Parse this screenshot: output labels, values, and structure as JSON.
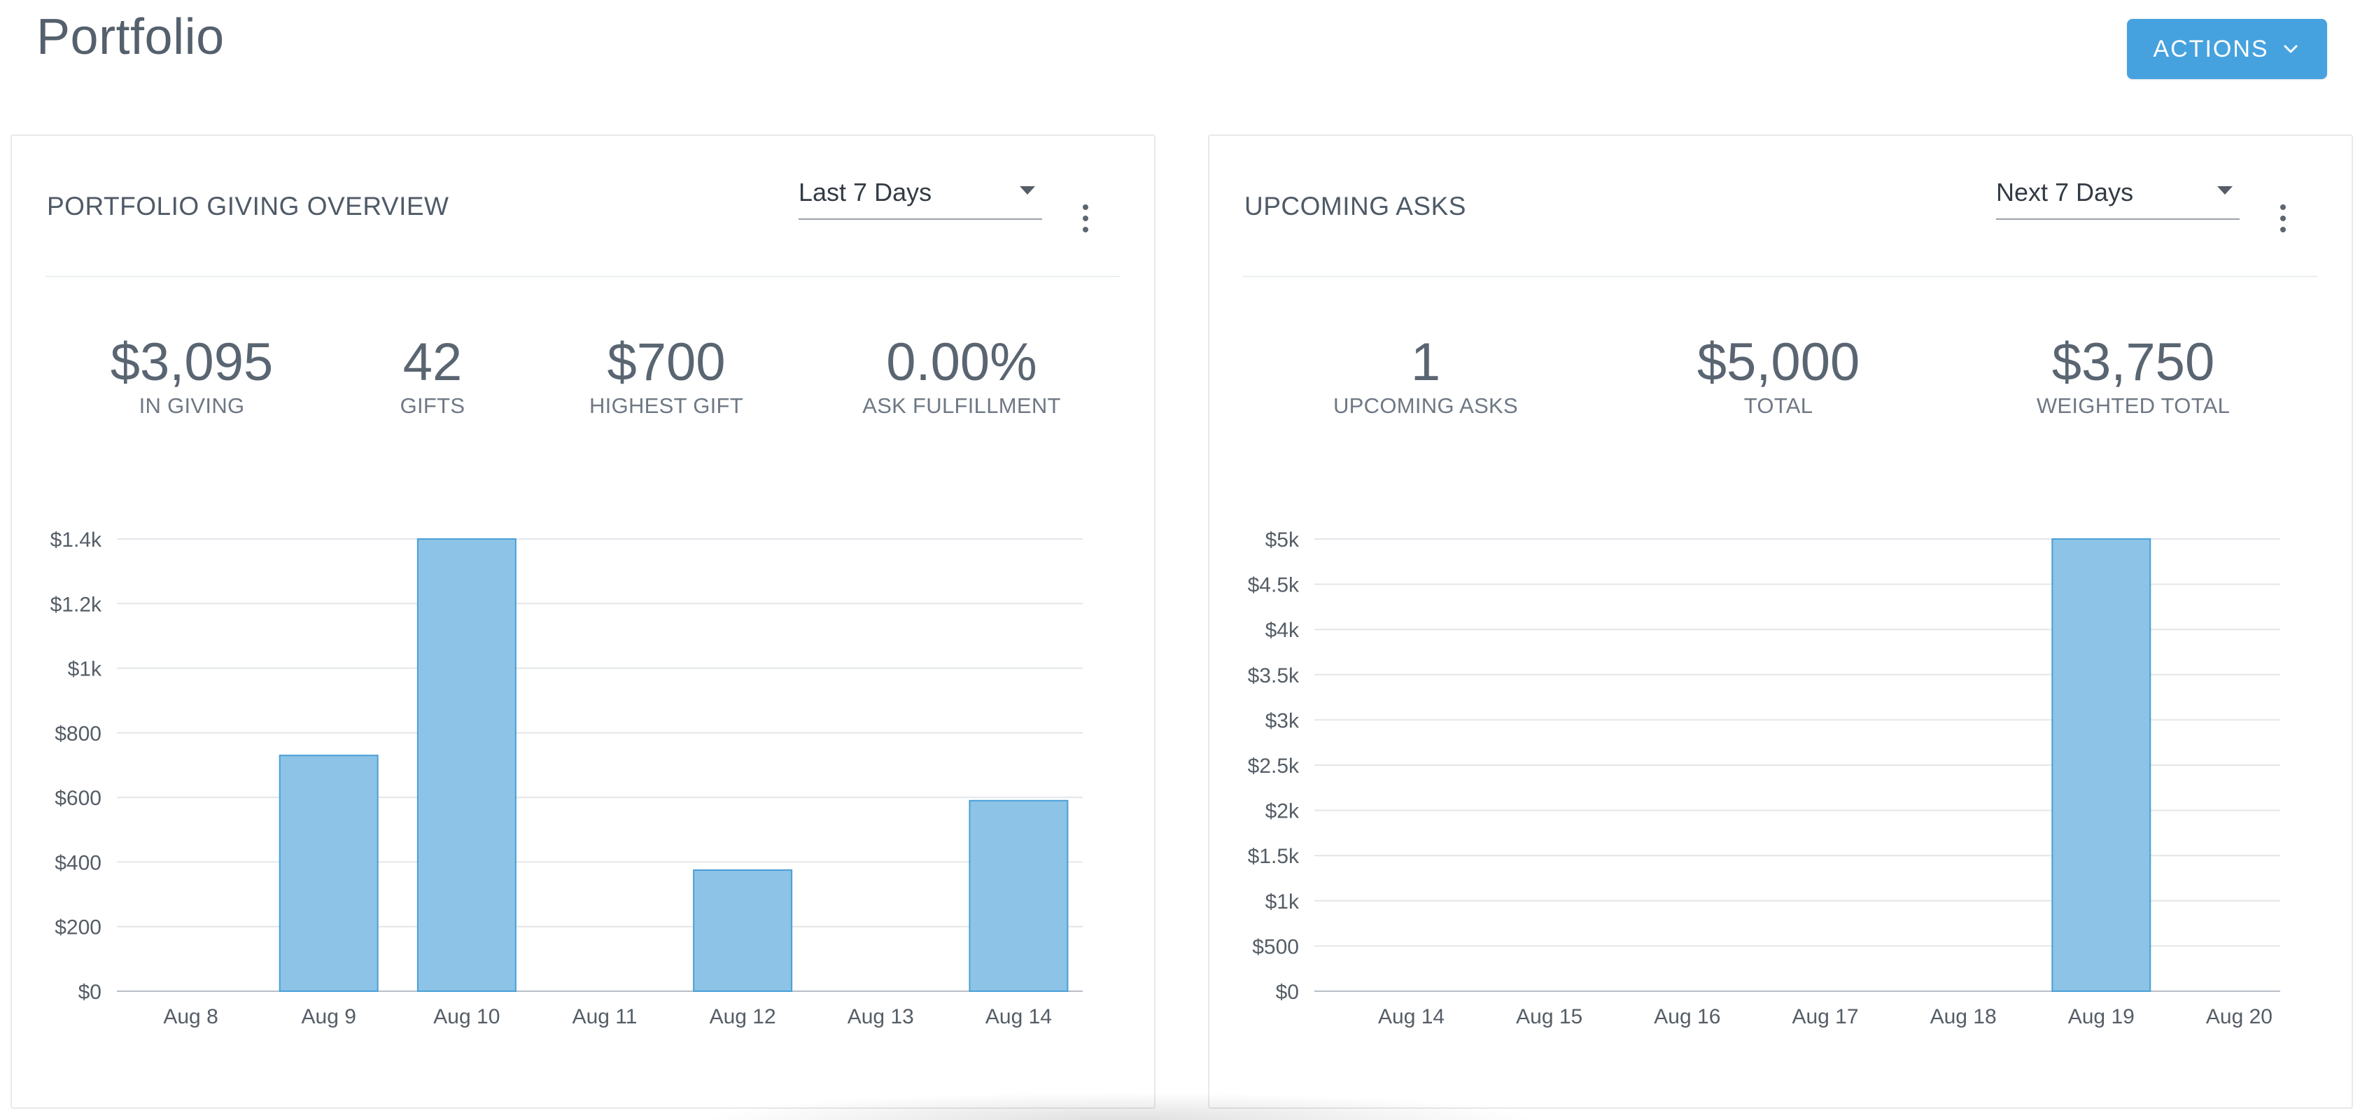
{
  "page": {
    "title": "Portfolio",
    "actions_label": "ACTIONS",
    "actions_icon": "chevron-down-icon"
  },
  "giving_panel": {
    "title": "PORTFOLIO GIVING OVERVIEW",
    "range_value": "Last 7 Days",
    "stats": [
      {
        "value": "$3,095",
        "label": "IN GIVING"
      },
      {
        "value": "42",
        "label": "GIFTS"
      },
      {
        "value": "$700",
        "label": "HIGHEST GIFT"
      },
      {
        "value": "0.00%",
        "label": "ASK FULFILLMENT"
      }
    ]
  },
  "asks_panel": {
    "title": "UPCOMING ASKS",
    "range_value": "Next 7 Days",
    "stats": [
      {
        "value": "1",
        "label": "UPCOMING ASKS"
      },
      {
        "value": "$5,000",
        "label": "TOTAL"
      },
      {
        "value": "$3,750",
        "label": "WEIGHTED TOTAL"
      }
    ]
  },
  "colors": {
    "accent": "#46a2df",
    "bar_fill": "#8cc3e6",
    "bar_stroke": "#4a9fd6",
    "grid": "#e3e6e9",
    "axis_text": "#555d66"
  },
  "chart_data": [
    {
      "type": "bar",
      "title": "",
      "xlabel": "",
      "ylabel": "",
      "categories": [
        "Aug 8",
        "Aug 9",
        "Aug 10",
        "Aug 11",
        "Aug 12",
        "Aug 13",
        "Aug 14"
      ],
      "values": [
        0,
        730,
        1400,
        0,
        375,
        0,
        590
      ],
      "ylim": [
        0,
        1400
      ],
      "yticks": [
        0,
        200,
        400,
        600,
        800,
        1000,
        1200,
        1400
      ],
      "ytick_labels": [
        "$0",
        "$200",
        "$400",
        "$600",
        "$800",
        "$1k",
        "$1.2k",
        "$1.4k"
      ],
      "grid": true,
      "legend": "none"
    },
    {
      "type": "bar",
      "title": "",
      "xlabel": "",
      "ylabel": "",
      "categories": [
        "Aug 14",
        "Aug 15",
        "Aug 16",
        "Aug 17",
        "Aug 18",
        "Aug 19",
        "Aug 20"
      ],
      "values": [
        0,
        0,
        0,
        0,
        0,
        5000,
        0
      ],
      "ylim": [
        0,
        5000
      ],
      "yticks": [
        0,
        500,
        1000,
        1500,
        2000,
        2500,
        3000,
        3500,
        4000,
        4500,
        5000
      ],
      "ytick_labels": [
        "$0",
        "$500",
        "$1k",
        "$1.5k",
        "$2k",
        "$2.5k",
        "$3k",
        "$3.5k",
        "$4k",
        "$4.5k",
        "$5k"
      ],
      "grid": true,
      "legend": "none"
    }
  ]
}
